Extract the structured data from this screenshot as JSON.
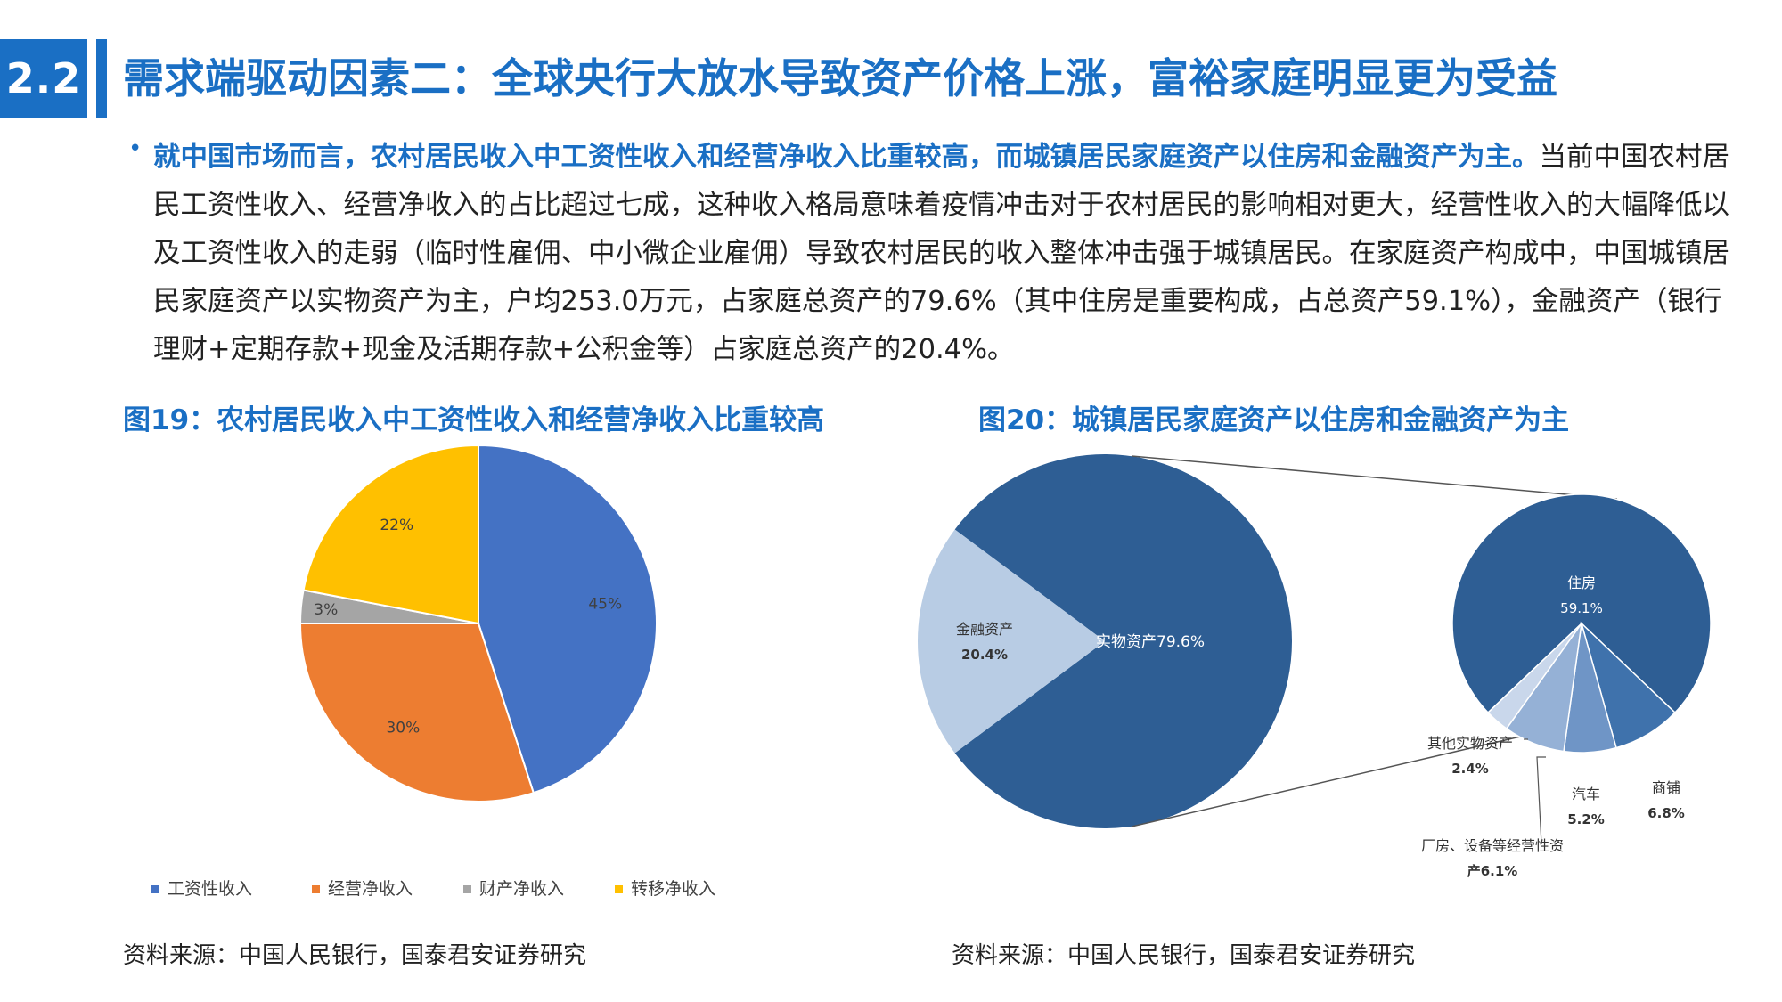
{
  "header": {
    "section": "2.2",
    "title": "需求端驱动因素二：全球央行大放水导致资产价格上涨，富裕家庭明显更为受益"
  },
  "body": {
    "highlight": "就中国市场而言，农村居民收入中工资性收入和经营净收入比重较高，而城镇居民家庭资产以住房和金融资产为主。",
    "text": "当前中国农村居民工资性收入、经营净收入的占比超过七成，这种收入格局意味着疫情冲击对于农村居民的影响相对更大，经营性收入的大幅降低以及工资性收入的走弱（临时性雇佣、中小微企业雇佣）导致农村居民的收入整体冲击强于城镇居民。在家庭资产构成中，中国城镇居民家庭资产以实物资产为主，户均253.0万元，占家庭总资产的79.6%（其中住房是重要构成，占总资产59.1%），金融资产（银行理财+定期存款+现金及活期存款+公积金等）占家庭总资产的20.4%。"
  },
  "figures": {
    "fig19_title": "图19：农村居民收入中工资性收入和经营净收入比重较高",
    "fig20_title": "图20：城镇居民家庭资产以住房和金融资产为主",
    "source_left": "资料来源：中国人民银行，国泰君安证券研究",
    "source_right": "资料来源：中国人民银行，国泰君安证券研究"
  },
  "chart_data": [
    {
      "type": "pie",
      "slices": [
        {
          "label": "工资性收入",
          "value": 45,
          "display": "45%",
          "color": "#4472c4"
        },
        {
          "label": "经营净收入",
          "value": 30,
          "display": "30%",
          "color": "#ed7d31"
        },
        {
          "label": "财产净收入",
          "value": 3,
          "display": "3%",
          "color": "#a5a5a5"
        },
        {
          "label": "转移净收入",
          "value": 22,
          "display": "22%",
          "color": "#ffc000"
        }
      ],
      "legend_position": "bottom"
    },
    {
      "type": "pie",
      "variant": "pie-of-pie",
      "main_slices": [
        {
          "label": "实物资产",
          "value": 79.6,
          "display": "实物资产79.6%",
          "color": "#2e5e94"
        },
        {
          "label": "金融资产",
          "value": 20.4,
          "display": "20.4%",
          "color": "#b8cce4"
        }
      ],
      "breakdown_of": "实物资产",
      "breakdown_slices": [
        {
          "label": "住房",
          "value": 59.1,
          "display": "59.1%",
          "color": "#2e5e94"
        },
        {
          "label": "商铺",
          "value": 6.8,
          "display": "6.8%",
          "color": "#3f72ac"
        },
        {
          "label": "汽车",
          "value": 5.2,
          "display": "5.2%",
          "color": "#6f95c6"
        },
        {
          "label": "厂房、设备等经营性资",
          "label2": "产",
          "value": 6.1,
          "display": "6.1%",
          "color": "#95b1d6"
        },
        {
          "label": "其他实物资产",
          "value": 2.4,
          "display": "2.4%",
          "color": "#c9d7eb"
        }
      ]
    }
  ]
}
